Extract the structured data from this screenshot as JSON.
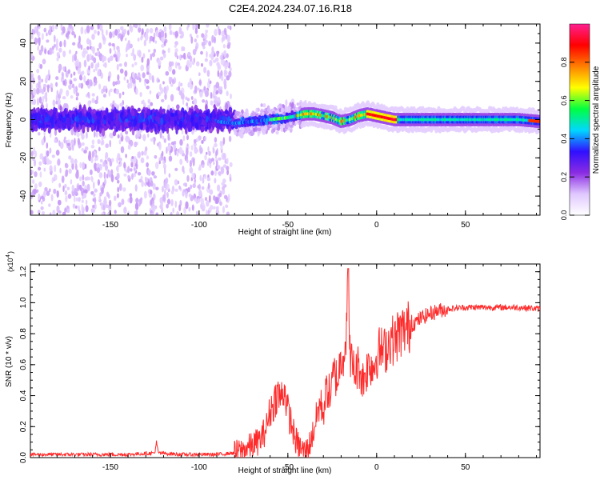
{
  "title": "C2E4.2024.234.07.16.R18",
  "chart_data": [
    {
      "type": "heatmap",
      "title": "C2E4.2024.234.07.16.R18",
      "xlabel": "Height of straight line (km)",
      "ylabel": "Frequency (Hz)",
      "xlim": [
        -195,
        92
      ],
      "ylim": [
        -50,
        50
      ],
      "x_ticks": [
        -150,
        -100,
        -50,
        0,
        50
      ],
      "y_ticks": [
        -40,
        -20,
        0,
        20,
        40
      ],
      "x_tick_labels": [
        "-150",
        "-100",
        "-50",
        "0",
        "50"
      ],
      "y_tick_labels": [
        "-40",
        "-20",
        "0",
        "20",
        "40"
      ],
      "colorbar": {
        "label": "Normalized spectral amplitude",
        "range": [
          0,
          1
        ],
        "ticks": [
          0.0,
          0.2,
          0.4,
          0.6,
          0.8
        ],
        "tick_labels": [
          "0.0",
          "0.2",
          "0.4",
          "0.6",
          "0.8"
        ],
        "colors": [
          "#ffffff",
          "#e0c8ff",
          "#8a2be2",
          "#3010ff",
          "#00d8ff",
          "#00ff40",
          "#ffff00",
          "#ff8000",
          "#ff0000",
          "#ff2090"
        ]
      },
      "ridge": {
        "description": "signal ridge frequency (Hz) vs height (km)",
        "x": [
          -195,
          -150,
          -100,
          -80,
          -70,
          -60,
          -50,
          -45,
          -40,
          -35,
          -30,
          -25,
          -20,
          -15,
          -10,
          -5,
          0,
          5,
          10,
          20,
          40,
          60,
          80,
          92
        ],
        "y": [
          0,
          0,
          0,
          -2,
          -1,
          0,
          1,
          2,
          3,
          3,
          2,
          1,
          -1,
          0,
          2,
          3,
          2,
          1,
          0,
          0,
          0,
          0,
          0,
          -1
        ]
      }
    },
    {
      "type": "line",
      "xlabel": "Height of straight line (km)",
      "ylabel": "SNR (10 * v/v)",
      "scale_label": "(x10",
      "scale_exp": "4",
      "scale_close": ")",
      "xlim": [
        -195,
        92
      ],
      "ylim": [
        0,
        1.25
      ],
      "x_ticks": [
        -150,
        -100,
        -50,
        0,
        50
      ],
      "y_ticks": [
        0.0,
        0.2,
        0.4,
        0.6,
        0.8,
        1.0,
        1.2
      ],
      "x_tick_labels": [
        "-150",
        "-100",
        "-50",
        "0",
        "50"
      ],
      "y_tick_labels": [
        "0.0",
        "0.2",
        "0.4",
        "0.6",
        "0.8",
        "1.0",
        "1.2"
      ],
      "series": [
        {
          "name": "SNR",
          "color": "#ff2a2a",
          "x": [
            -195,
            -180,
            -160,
            -140,
            -125,
            -124,
            -123,
            -110,
            -90,
            -80,
            -75,
            -70,
            -65,
            -62,
            -60,
            -58,
            -56,
            -54,
            -52,
            -50,
            -48,
            -46,
            -44,
            -42,
            -40,
            -38,
            -36,
            -34,
            -32,
            -30,
            -28,
            -26,
            -24,
            -22,
            -20,
            -18,
            -17,
            -16,
            -15,
            -14,
            -12,
            -10,
            -8,
            -6,
            -4,
            -2,
            0,
            2,
            4,
            6,
            8,
            10,
            12,
            15,
            20,
            25,
            30,
            35,
            40,
            50,
            60,
            70,
            80,
            92
          ],
          "y": [
            0.02,
            0.02,
            0.02,
            0.02,
            0.03,
            0.1,
            0.03,
            0.02,
            0.02,
            0.03,
            0.05,
            0.08,
            0.12,
            0.2,
            0.3,
            0.35,
            0.42,
            0.38,
            0.45,
            0.3,
            0.22,
            0.12,
            0.08,
            0.05,
            0.04,
            0.08,
            0.15,
            0.25,
            0.35,
            0.3,
            0.45,
            0.4,
            0.55,
            0.5,
            0.65,
            0.7,
            0.85,
            1.22,
            0.7,
            0.6,
            0.55,
            0.6,
            0.5,
            0.55,
            0.62,
            0.58,
            0.66,
            0.7,
            0.68,
            0.72,
            0.78,
            0.74,
            0.8,
            0.82,
            0.86,
            0.9,
            0.93,
            0.95,
            0.96,
            0.97,
            0.97,
            0.97,
            0.97,
            0.96
          ]
        }
      ]
    }
  ]
}
